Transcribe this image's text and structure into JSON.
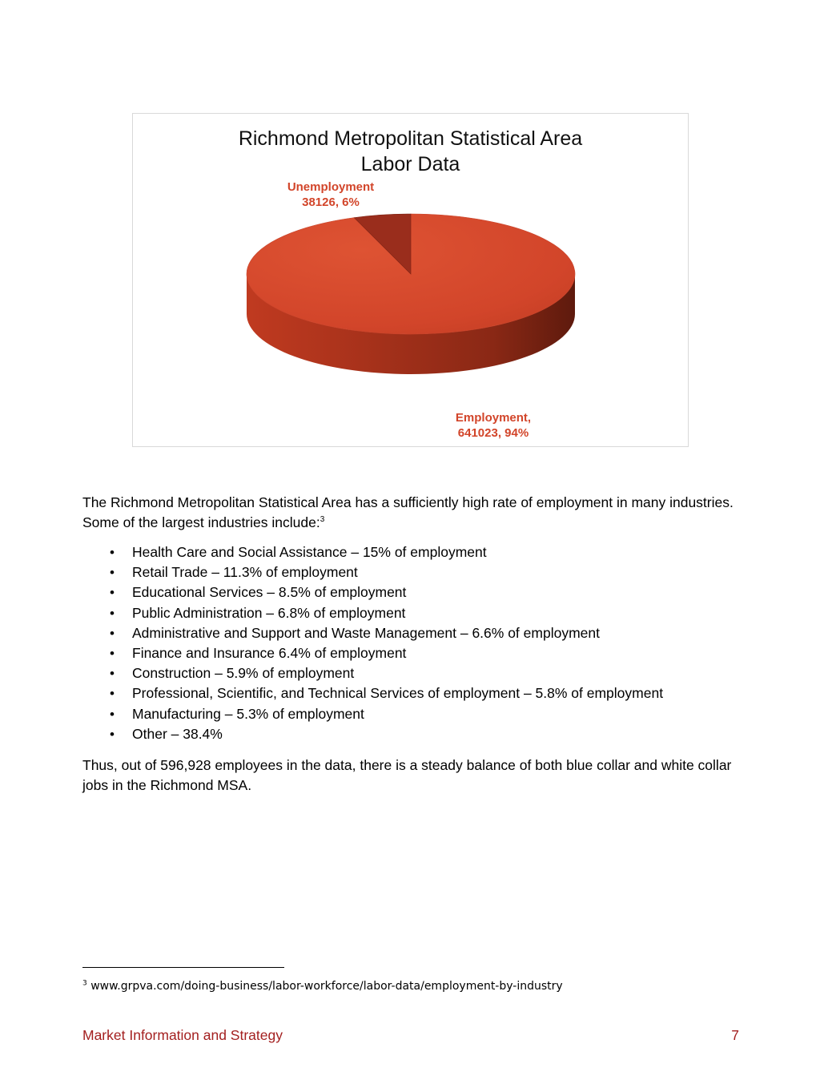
{
  "chart_data": {
    "type": "pie",
    "title": "Richmond Metropolitan Statistical Area Labor Data",
    "title_lines": [
      "Richmond Metropolitan Statistical Area",
      "Labor Data"
    ],
    "slices": [
      {
        "name": "Unemployment",
        "value": 38126,
        "percent": 6,
        "color": "#9a2d1c",
        "label_lines": [
          "Unemployment",
          "38126, 6%"
        ]
      },
      {
        "name": "Employment",
        "value": 641023,
        "percent": 94,
        "color": "#d2452a",
        "label_lines": [
          "Employment,",
          "641023, 94%"
        ]
      }
    ],
    "style": "3d",
    "label_color": "#d2452a"
  },
  "intro": {
    "text": "The Richmond Metropolitan Statistical Area has a sufficiently high rate of employment in many industries. Some of the largest industries include:",
    "footnote_ref": "3"
  },
  "industries": [
    "Health Care and Social Assistance – 15% of employment",
    "Retail Trade – 11.3% of employment",
    "Educational Services – 8.5% of employment",
    "Public Administration – 6.8% of employment",
    "Administrative and Support and Waste Management – 6.6% of employment",
    "Finance and Insurance 6.4% of employment",
    "Construction – 5.9% of employment",
    "Professional, Scientific, and Technical Services of employment – 5.8% of employment",
    "Manufacturing – 5.3% of employment",
    "Other – 38.4%"
  ],
  "conclusion": "Thus, out of 596,928 employees in the data, there is a steady balance of both blue collar and white collar jobs in the Richmond MSA.",
  "footnote": {
    "number": "3",
    "text": "www.grpva.com/doing-business/labor-workforce/labor-data/employment-by-industry"
  },
  "footer": {
    "section": "Market Information and Strategy",
    "page_number": "7",
    "color": "#a31f1f"
  }
}
